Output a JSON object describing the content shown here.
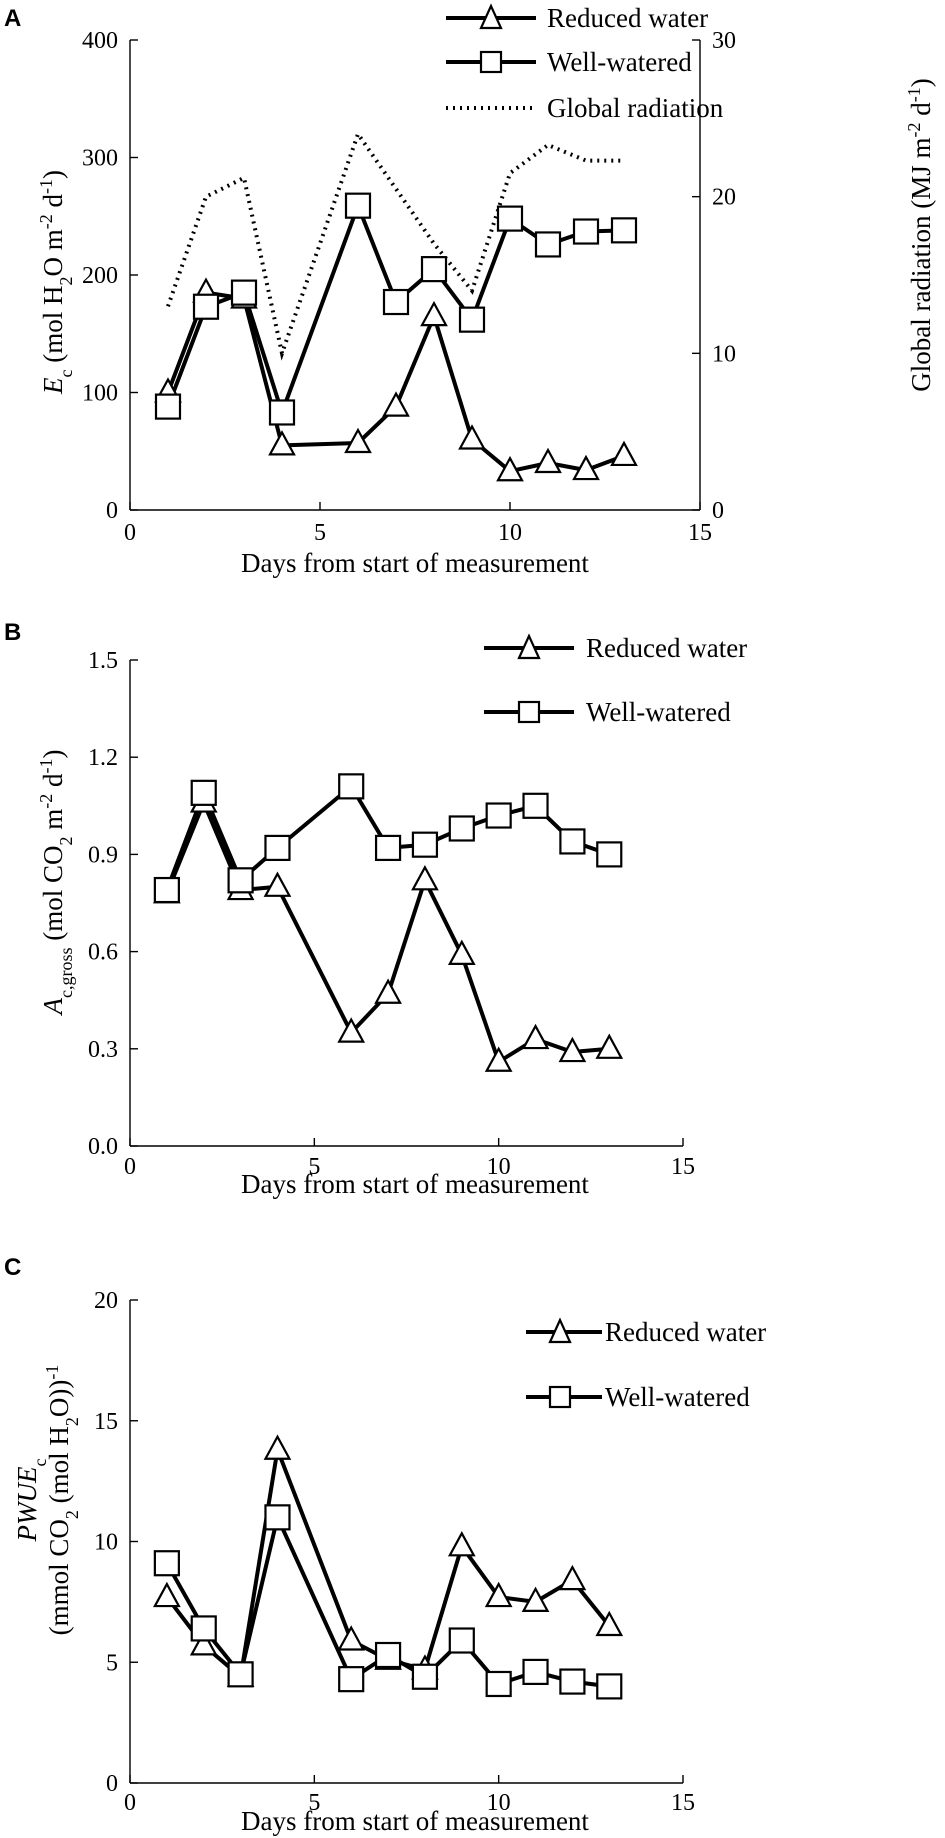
{
  "chart_data": [
    {
      "panel": "A",
      "type": "line",
      "xlabel": "Days from start of  measurement",
      "ylabel": "E_c (mol H2O m-2 d-1)",
      "y2label": "Global radiation (MJ m-2 d-1)",
      "xlim": [
        0,
        15
      ],
      "ylim": [
        0,
        400
      ],
      "y2lim": [
        0,
        30
      ],
      "xticks": [
        0,
        5,
        10,
        15
      ],
      "yticks": [
        0,
        100,
        200,
        300,
        400
      ],
      "y2ticks": [
        0,
        10,
        20,
        30
      ],
      "legend_position": "top-center",
      "series": [
        {
          "name": "Reduced water",
          "marker": "triangle",
          "axis": "left",
          "x": [
            1,
            2,
            3,
            4,
            6,
            7,
            8,
            9,
            10,
            11,
            12,
            13
          ],
          "y": [
            100,
            185,
            180,
            55,
            57,
            88,
            165,
            60,
            33,
            40,
            34,
            46
          ]
        },
        {
          "name": "Well-watered",
          "marker": "square",
          "axis": "left",
          "x": [
            1,
            2,
            3,
            4,
            6,
            7,
            8,
            9,
            10,
            11,
            12,
            13
          ],
          "y": [
            88,
            173,
            185,
            83,
            259,
            177,
            205,
            162,
            248,
            226,
            237,
            238
          ]
        },
        {
          "name": "Global radiation",
          "style": "dotted",
          "axis": "right",
          "x": [
            1,
            2,
            3,
            4,
            6,
            8,
            9,
            10,
            11,
            12,
            13
          ],
          "y": [
            13,
            20,
            21.2,
            10,
            24,
            17,
            14,
            21.5,
            23.3,
            22.3,
            22.3
          ]
        }
      ]
    },
    {
      "panel": "B",
      "type": "line",
      "xlabel": "Days from start of measurement",
      "ylabel": "A_c,gross (mol CO2 m-2 d-1)",
      "xlim": [
        0,
        15
      ],
      "ylim": [
        0,
        1.5
      ],
      "xticks": [
        0,
        5,
        10,
        15
      ],
      "yticks": [
        "0.0",
        "0.3",
        "0.6",
        "0.9",
        "1.2",
        "1.5"
      ],
      "legend_position": "top-right",
      "series": [
        {
          "name": "Reduced water",
          "marker": "triangle",
          "x": [
            1,
            2,
            3,
            4,
            6,
            7,
            8,
            9,
            10,
            11,
            12,
            13
          ],
          "y": [
            0.78,
            1.06,
            0.79,
            0.8,
            0.35,
            0.47,
            0.82,
            0.59,
            0.26,
            0.33,
            0.29,
            0.3
          ]
        },
        {
          "name": "Well-watered",
          "marker": "square",
          "x": [
            1,
            2,
            3,
            4,
            6,
            7,
            8,
            9,
            10,
            11,
            12,
            13
          ],
          "y": [
            0.79,
            1.09,
            0.82,
            0.92,
            1.11,
            0.92,
            0.93,
            0.98,
            1.02,
            1.05,
            0.94,
            0.9
          ]
        }
      ]
    },
    {
      "panel": "C",
      "type": "line",
      "xlabel": "Days from start of measurement",
      "ylabel": "PWUE_c (mmol CO2 (mol H2O)-1)",
      "xlim": [
        0,
        15
      ],
      "ylim": [
        0,
        20
      ],
      "xticks": [
        0,
        5,
        10,
        15
      ],
      "yticks": [
        0,
        5,
        10,
        15,
        20
      ],
      "legend_position": "top-right",
      "series": [
        {
          "name": "Reduced water",
          "marker": "triangle",
          "x": [
            1,
            2,
            3,
            4,
            6,
            7,
            8,
            9,
            10,
            11,
            12,
            13
          ],
          "y": [
            7.7,
            5.7,
            4.4,
            13.8,
            5.9,
            5.1,
            4.7,
            9.8,
            7.7,
            7.5,
            8.4,
            6.5
          ]
        },
        {
          "name": "Well-watered",
          "marker": "square",
          "x": [
            1,
            2,
            3,
            4,
            6,
            7,
            8,
            9,
            10,
            11,
            12,
            13
          ],
          "y": [
            9.1,
            6.4,
            4.5,
            11.0,
            4.3,
            5.3,
            4.4,
            5.9,
            4.1,
            4.6,
            4.2,
            4.0
          ]
        }
      ]
    }
  ],
  "labels": {
    "panel_a": "A",
    "panel_b": "B",
    "panel_c": "C",
    "legend_a_reduced": "Reduced water",
    "legend_a_well": "Well-watered",
    "legend_a_radiation": "Global radiation",
    "legend_b_reduced": "Reduced water",
    "legend_b_well": "Well-watered",
    "legend_c_reduced": "Reduced water",
    "legend_c_well": "Well-watered",
    "xlabel_a": "Days from start of  measurement",
    "xlabel_b": "Days from start of measurement",
    "xlabel_c": "Days from start of measurement",
    "a_ylabel_E": "E",
    "a_ylabel_sub": "c",
    "a_ylabel_mid": " (mol H",
    "a_ylabel_2": "2",
    "a_ylabel_O": "O m",
    "a_ylabel_exp1": "-2",
    "a_ylabel_d": " d",
    "a_ylabel_exp2": "-1",
    "a_ylabel_end": ")",
    "a_y2label_main": "Global radiation (MJ m",
    "a_y2label_exp1": "-2",
    "a_y2label_d": " d",
    "a_y2label_exp2": "-1",
    "a_y2label_end": ")",
    "b_ylabel_A": "A",
    "b_ylabel_sub": "c,gross",
    "b_ylabel_mid": "  (mol CO",
    "b_ylabel_2": "2",
    "b_ylabel_m": " m",
    "b_ylabel_exp1": "-2",
    "b_ylabel_d": " d",
    "b_ylabel_exp2": "-1",
    "b_ylabel_end": ")",
    "c_ylabel1_main": "PWUE",
    "c_ylabel1_sub": "c",
    "c_ylabel2_a": "(mmol CO",
    "c_ylabel2_2a": "2",
    "c_ylabel2_b": " (mol H",
    "c_ylabel2_2b": "2",
    "c_ylabel2_c": "O))",
    "c_ylabel2_exp": "-1"
  }
}
